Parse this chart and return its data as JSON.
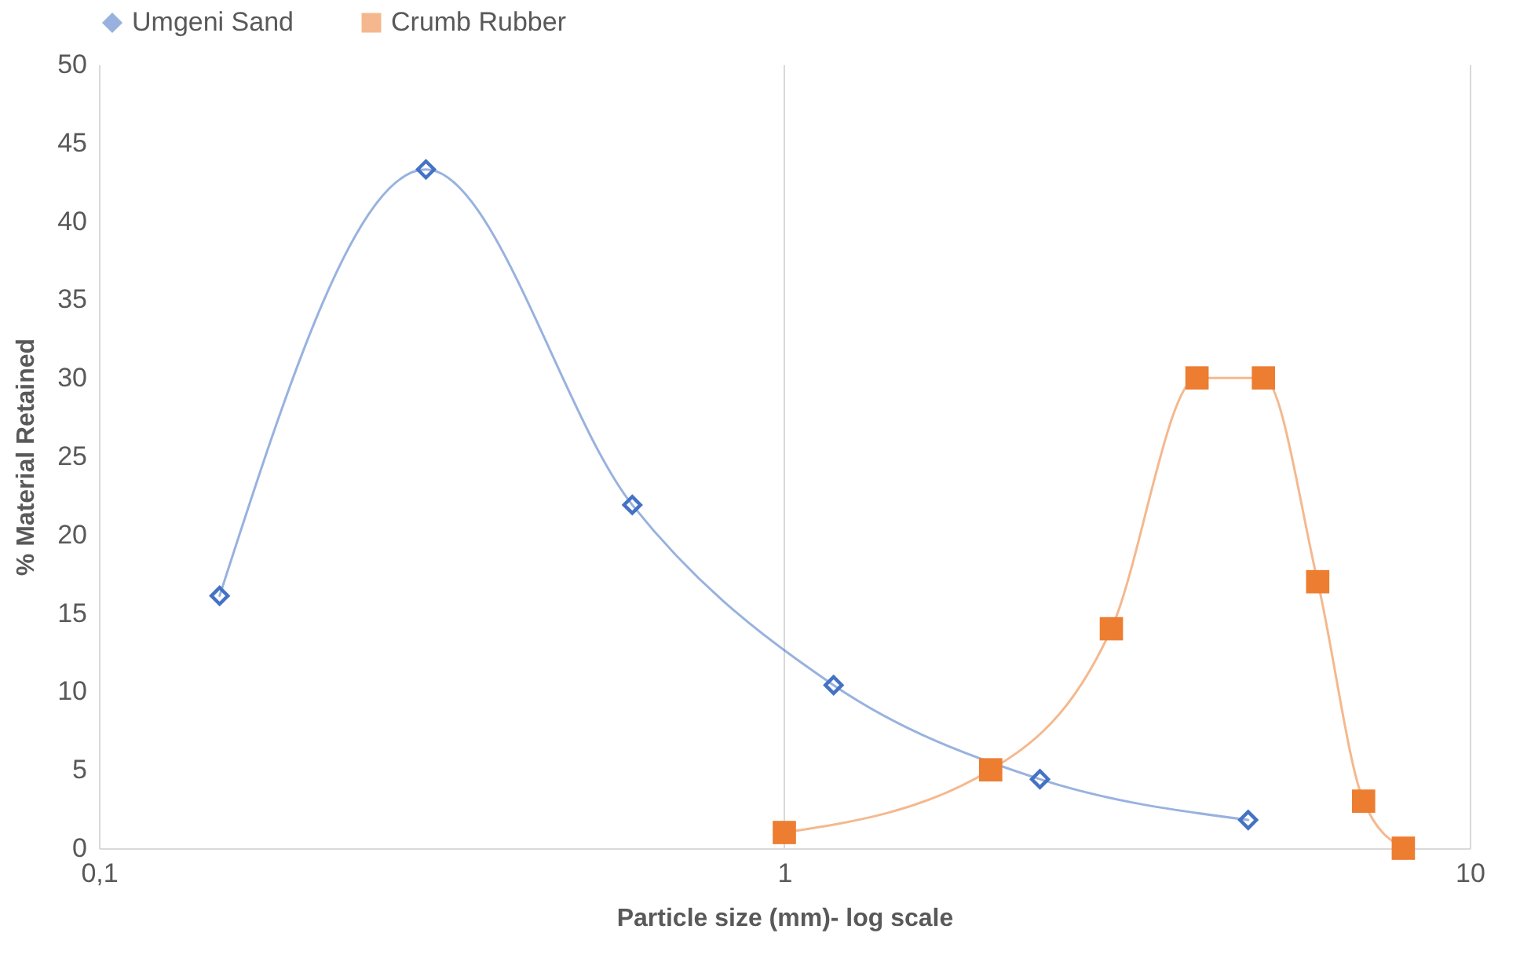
{
  "chart_data": {
    "type": "line",
    "xlabel": "Particle size (mm)- log scale",
    "ylabel": "% Material Retained",
    "log": "x",
    "xlim": [
      0.1,
      10
    ],
    "xticks": [
      {
        "value": 0.1,
        "label": "0,1"
      },
      1,
      10
    ],
    "ylim": [
      0,
      50
    ],
    "yticks": [
      0,
      5,
      10,
      15,
      20,
      25,
      30,
      35,
      40,
      45,
      50
    ],
    "grid": "x",
    "legend": "top",
    "series": [
      {
        "name": "Umgeni Sand",
        "color": "#4472c4",
        "marker": "diamond",
        "x": [
          0.15,
          0.3,
          0.6,
          1.18,
          2.36,
          4.75
        ],
        "values": [
          16.1,
          43.3,
          21.9,
          10.4,
          4.4,
          1.8
        ]
      },
      {
        "name": "Crumb Rubber",
        "color": "#ed7d31",
        "marker": "square",
        "x": [
          1,
          2,
          3,
          4,
          5,
          6,
          7,
          8
        ],
        "values": [
          1,
          5,
          14,
          30,
          30,
          17,
          3,
          0
        ]
      }
    ]
  }
}
